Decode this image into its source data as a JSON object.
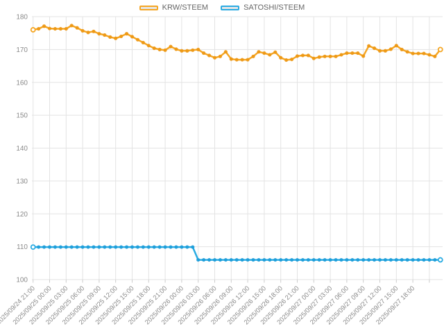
{
  "legend": {
    "items": [
      {
        "label": "KRW/STEEM",
        "color": "#F5A623"
      },
      {
        "label": "SATOSHI/STEEM",
        "color": "#29ABE2"
      }
    ],
    "swatch_fill": "#E6E6E6",
    "text_color": "#666666",
    "position": "top-center"
  },
  "chart_data": {
    "type": "line",
    "title": "",
    "xlabel": "",
    "ylabel": "",
    "x_start": "2025/09/24 21:00",
    "x_point_interval_hours": 1,
    "x_tick_interval_hours": 3,
    "x_tick_labels": [
      "2025/09/24 21:00",
      "2025/09/25 00:00",
      "2025/09/25 03:00",
      "2025/09/25 06:00",
      "2025/09/25 09:00",
      "2025/09/25 12:00",
      "2025/09/25 15:00",
      "2025/09/25 18:00",
      "2025/09/25 21:00",
      "2025/09/26 00:00",
      "2025/09/26 03:00",
      "2025/09/26 06:00",
      "2025/09/26 09:00",
      "2025/09/26 12:00",
      "2025/09/26 15:00",
      "2025/09/26 18:00",
      "2025/09/26 21:00",
      "2025/09/27 00:00",
      "2025/09/27 03:00",
      "2025/09/27 06:00",
      "2025/09/27 09:00",
      "2025/09/27 12:00",
      "2025/09/27 15:00",
      "2025/09/27 18:00"
    ],
    "y_ticks": [
      100,
      110,
      120,
      130,
      140,
      150,
      160,
      170,
      180
    ],
    "ylim": [
      100,
      180
    ],
    "grid": true,
    "legend_position": "top-center",
    "style": {
      "background": "#FFFFFF",
      "grid_color": "#E3E3E3",
      "tick_color": "#CCCCCC",
      "axis_text_color": "#8A8A8A",
      "line_width": 2.5,
      "marker_radius": 2.6,
      "endpoint_marker": "open-circle"
    },
    "series": [
      {
        "name": "KRW/STEEM",
        "color": "#F5A623",
        "marker_color": "#ED9712",
        "values": [
          176.0,
          176.3,
          177.1,
          176.4,
          176.3,
          176.3,
          176.3,
          177.3,
          176.6,
          175.7,
          175.2,
          175.5,
          174.8,
          174.4,
          173.8,
          173.4,
          174.0,
          174.8,
          173.9,
          173.0,
          172.1,
          171.2,
          170.4,
          170.0,
          169.8,
          170.9,
          170.1,
          169.6,
          169.6,
          169.8,
          170.0,
          168.9,
          168.2,
          167.5,
          167.9,
          169.3,
          167.1,
          166.9,
          166.9,
          166.9,
          167.9,
          169.3,
          168.9,
          168.4,
          169.2,
          167.5,
          166.8,
          167.0,
          168.0,
          168.2,
          168.2,
          167.3,
          167.7,
          167.9,
          167.9,
          167.9,
          168.4,
          168.9,
          168.9,
          168.9,
          168.0,
          171.1,
          170.4,
          169.6,
          169.6,
          170.1,
          171.2,
          170.0,
          169.3,
          168.8,
          168.8,
          168.8,
          168.4,
          167.9,
          170.0
        ]
      },
      {
        "name": "SATOSHI/STEEM",
        "color": "#29ABE2",
        "marker_color": "#1B9CD9",
        "values": [
          109.9,
          109.9,
          109.9,
          109.9,
          109.9,
          109.9,
          109.9,
          109.9,
          109.9,
          109.9,
          109.9,
          109.9,
          109.9,
          109.9,
          109.9,
          109.9,
          109.9,
          109.9,
          109.9,
          109.9,
          109.9,
          109.9,
          109.9,
          109.9,
          109.9,
          109.9,
          109.9,
          109.9,
          109.9,
          109.9,
          106.0,
          106.0,
          106.0,
          106.0,
          106.0,
          106.0,
          106.0,
          106.0,
          106.0,
          106.0,
          106.0,
          106.0,
          106.0,
          106.0,
          106.0,
          106.0,
          106.0,
          106.0,
          106.0,
          106.0,
          106.0,
          106.0,
          106.0,
          106.0,
          106.0,
          106.0,
          106.0,
          106.0,
          106.0,
          106.0,
          106.0,
          106.0,
          106.0,
          106.0,
          106.0,
          106.0,
          106.0,
          106.0,
          106.0,
          106.0,
          106.0,
          106.0,
          106.0,
          106.0,
          106.0
        ]
      }
    ]
  }
}
